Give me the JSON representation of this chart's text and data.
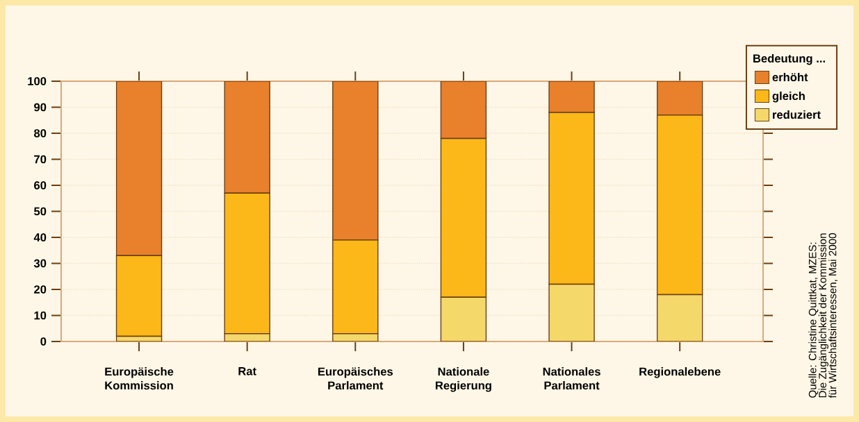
{
  "chart_data": {
    "type": "bar",
    "stacked": true,
    "categories": [
      "Europäische Kommission",
      "Rat",
      "Europäisches Parlament",
      "Nationale Regierung",
      "Nationales Parlament",
      "Regionalebene"
    ],
    "series": [
      {
        "name": "reduziert",
        "color": "#f5d86a",
        "values": [
          2,
          3,
          3,
          17,
          22,
          18
        ]
      },
      {
        "name": "gleich",
        "color": "#fbb818",
        "values": [
          31,
          54,
          36,
          61,
          66,
          69
        ]
      },
      {
        "name": "erhöht",
        "color": "#e8802c",
        "values": [
          67,
          43,
          61,
          22,
          12,
          13
        ]
      }
    ],
    "ylim": [
      0,
      100
    ],
    "yticks": [
      0,
      10,
      20,
      30,
      40,
      50,
      60,
      70,
      80,
      90,
      100
    ],
    "grid": "y",
    "legend": "top right",
    "legend_title": "Bedeutung ...",
    "annotations": [
      "Quelle: Christine Quittkat, MZES:",
      "Die Zugänglichkeit der Kommission",
      "für Wirtschaftsinteressen, Mai 2000"
    ]
  }
}
